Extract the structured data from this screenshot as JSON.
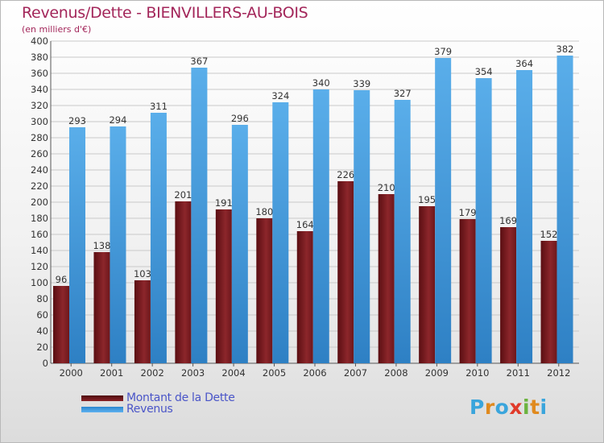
{
  "chart_data": {
    "type": "bar",
    "title": "Revenus/Dette - BIENVILLERS-AU-BOIS",
    "subtitle": "(en milliers d'€)",
    "categories": [
      "2000",
      "2001",
      "2002",
      "2003",
      "2004",
      "2005",
      "2006",
      "2007",
      "2008",
      "2009",
      "2010",
      "2011",
      "2012"
    ],
    "series": [
      {
        "name": "Montant de la Dette",
        "values": [
          96,
          138,
          103,
          201,
          191,
          180,
          164,
          226,
          210,
          195,
          179,
          169,
          152
        ],
        "color": "#7a1a1e"
      },
      {
        "name": "Revenus",
        "values": [
          293,
          294,
          311,
          367,
          296,
          324,
          340,
          339,
          327,
          379,
          354,
          364,
          382
        ],
        "color": "#3d9be0"
      }
    ],
    "ylim": [
      0,
      400
    ],
    "yticks": [
      0,
      20,
      40,
      60,
      80,
      100,
      120,
      140,
      160,
      180,
      200,
      220,
      240,
      260,
      280,
      300,
      320,
      340,
      360,
      380,
      400
    ],
    "grid": true,
    "legend_position": "bottom-left"
  },
  "logo": {
    "letters": [
      "P",
      "r",
      "o",
      "x",
      "i",
      "t",
      "i"
    ],
    "colors": [
      "#3aa5dc",
      "#e08a1e",
      "#3aa5dc",
      "#e03a2a",
      "#6cb33f",
      "#e08a1e",
      "#3aa5dc"
    ]
  }
}
